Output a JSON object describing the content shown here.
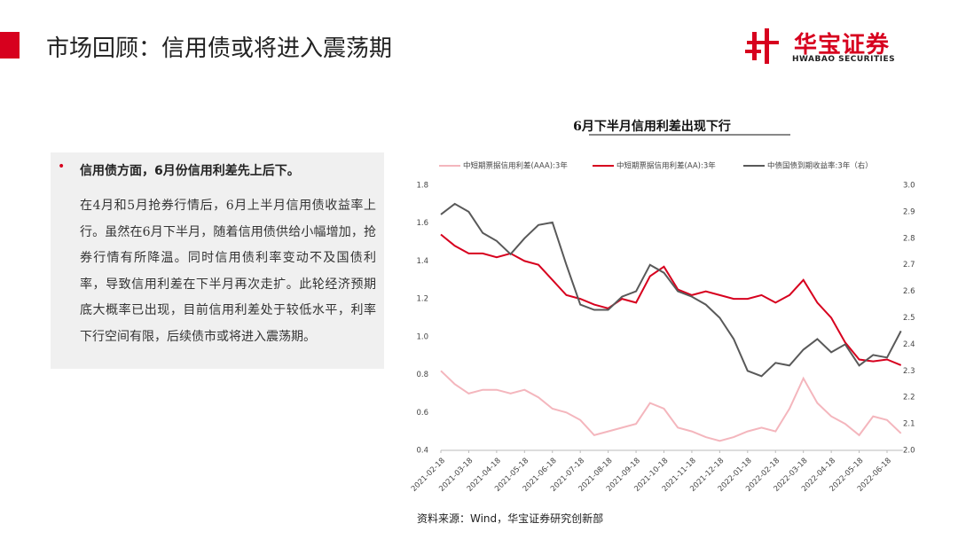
{
  "header": {
    "title": "市场回顾：信用债或将进入震荡期"
  },
  "logo": {
    "name": "华宝证券",
    "english": "HWABAO SECURITIES"
  },
  "panel": {
    "heading": "信用债方面，6月份信用利差先上后下。",
    "body": "在4月和5月抢券行情后，6月上半月信用债收益率上行。虽然在6月下半月，随着信用债供给小幅增加，抢券行情有所降温。同时信用债利率变动不及国债利率，导致信用利差在下半月再次走扩。此轮经济预期底大概率已出现，目前信用利差处于较低水平，利率下行空间有限，后续债市或将进入震荡期。"
  },
  "chart_data": {
    "type": "line",
    "title": "6月下半月信用利差出现下行",
    "legend": "top",
    "categories": [
      "2021-02-18",
      null,
      "2021-03-18",
      null,
      "2021-04-18",
      null,
      "2021-05-18",
      null,
      "2021-06-18",
      null,
      "2021-07-18",
      null,
      "2021-08-18",
      null,
      "2021-09-18",
      null,
      "2021-10-18",
      null,
      "2021-11-18",
      null,
      "2021-12-18",
      null,
      "2022-01-18",
      null,
      "2022-02-18",
      null,
      "2022-03-18",
      null,
      "2022-04-18",
      null,
      "2022-05-18",
      null,
      "2022-06-18",
      null
    ],
    "series": [
      {
        "name": "中短期票据信用利差(AAA):3年",
        "color": "#f4b6bd",
        "axis": "y",
        "values": [
          0.82,
          0.75,
          0.7,
          0.72,
          0.72,
          0.7,
          0.72,
          0.68,
          0.62,
          0.6,
          0.56,
          0.48,
          0.5,
          0.52,
          0.54,
          0.65,
          0.62,
          0.52,
          0.5,
          0.47,
          0.45,
          0.47,
          0.5,
          0.52,
          0.5,
          0.62,
          0.78,
          0.65,
          0.58,
          0.54,
          0.48,
          0.58,
          0.56,
          0.49
        ]
      },
      {
        "name": "中短期票据信用利差(AA):3年",
        "color": "#d7001e",
        "axis": "y",
        "values": [
          1.54,
          1.48,
          1.44,
          1.44,
          1.42,
          1.44,
          1.4,
          1.38,
          1.3,
          1.22,
          1.2,
          1.17,
          1.15,
          1.2,
          1.18,
          1.32,
          1.37,
          1.25,
          1.22,
          1.24,
          1.22,
          1.2,
          1.2,
          1.22,
          1.18,
          1.22,
          1.3,
          1.18,
          1.1,
          0.97,
          0.88,
          0.87,
          0.88,
          0.85
        ]
      },
      {
        "name": "中债国债到期收益率:3年（右）",
        "color": "#595959",
        "axis": "y2",
        "values": [
          2.89,
          2.93,
          2.9,
          2.82,
          2.79,
          2.74,
          2.8,
          2.85,
          2.86,
          2.7,
          2.55,
          2.53,
          2.53,
          2.58,
          2.6,
          2.7,
          2.67,
          2.6,
          2.58,
          2.55,
          2.5,
          2.42,
          2.3,
          2.28,
          2.33,
          2.32,
          2.38,
          2.42,
          2.37,
          2.4,
          2.32,
          2.36,
          2.35,
          2.45
        ]
      }
    ],
    "ylim": [
      0.4,
      1.8
    ],
    "yticks": [
      0.4,
      0.6,
      0.8,
      {
        "value": 1,
        "label": "1.0"
      },
      1.2,
      1.4,
      1.6,
      1.8
    ],
    "y2lim": [
      2,
      3
    ],
    "y2ticks": [
      {
        "value": 2,
        "label": "2.0"
      },
      2.1,
      2.2,
      2.3,
      2.4,
      2.5,
      2.6,
      2.7,
      2.8,
      2.9,
      {
        "value": 3,
        "label": "3.0"
      }
    ]
  },
  "source": "资料来源：Wind，华宝证券研究创新部"
}
